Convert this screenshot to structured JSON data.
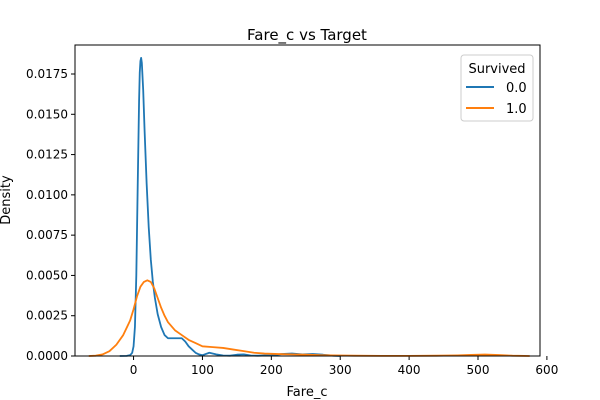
{
  "chart_data": {
    "type": "line",
    "title": "Fare_c vs Target",
    "xlabel": "Fare_c",
    "ylabel": "Density",
    "xlim": [
      -85,
      590
    ],
    "ylim": [
      0,
      0.0193
    ],
    "xticks": [
      0,
      100,
      200,
      300,
      400,
      500,
      600
    ],
    "yticks": [
      0.0,
      0.0025,
      0.005,
      0.0075,
      0.01,
      0.0125,
      0.015,
      0.0175
    ],
    "ytick_labels": [
      "0.0000",
      "0.0025",
      "0.0050",
      "0.0075",
      "0.0100",
      "0.0125",
      "0.0150",
      "0.0175"
    ],
    "grid": false,
    "legend": {
      "title": "Survived",
      "placement": "top-right"
    },
    "series": [
      {
        "name": "0.0",
        "color": "#1f77b4",
        "points": [
          [
            -20,
            0
          ],
          [
            -10,
            1e-05
          ],
          [
            -5,
            5e-05
          ],
          [
            -2,
            0.0002
          ],
          [
            0,
            0.0006
          ],
          [
            2,
            0.0018
          ],
          [
            4,
            0.005
          ],
          [
            6,
            0.0105
          ],
          [
            8,
            0.0158
          ],
          [
            9,
            0.0176
          ],
          [
            10,
            0.0183
          ],
          [
            11,
            0.0185
          ],
          [
            12,
            0.0182
          ],
          [
            14,
            0.0165
          ],
          [
            16,
            0.014
          ],
          [
            19,
            0.0107
          ],
          [
            22,
            0.008
          ],
          [
            25,
            0.006
          ],
          [
            28,
            0.0046
          ],
          [
            31,
            0.0036
          ],
          [
            35,
            0.0026
          ],
          [
            40,
            0.0018
          ],
          [
            45,
            0.0013
          ],
          [
            50,
            0.0011
          ],
          [
            55,
            0.0011
          ],
          [
            60,
            0.0011
          ],
          [
            65,
            0.0011
          ],
          [
            70,
            0.0011
          ],
          [
            75,
            0.0009
          ],
          [
            80,
            0.0006
          ],
          [
            85,
            0.0004
          ],
          [
            90,
            0.0002
          ],
          [
            95,
            0.0001
          ],
          [
            100,
            5e-05
          ],
          [
            110,
            0.0002
          ],
          [
            120,
            0.0001
          ],
          [
            130,
            3e-05
          ],
          [
            140,
            2e-05
          ],
          [
            150,
            8e-05
          ],
          [
            160,
            0.0001
          ],
          [
            170,
            3e-05
          ],
          [
            180,
            2e-05
          ],
          [
            200,
            4e-05
          ],
          [
            215,
            0.00012
          ],
          [
            230,
            0.00015
          ],
          [
            245,
            0.0001
          ],
          [
            260,
            0.00012
          ],
          [
            275,
            8e-05
          ],
          [
            290,
            2e-05
          ],
          [
            300,
            0
          ]
        ]
      },
      {
        "name": "1.0",
        "color": "#ff7f0e",
        "points": [
          [
            -65,
            0
          ],
          [
            -55,
            2e-05
          ],
          [
            -45,
            0.0001
          ],
          [
            -35,
            0.0003
          ],
          [
            -25,
            0.0007
          ],
          [
            -15,
            0.0013
          ],
          [
            -5,
            0.0022
          ],
          [
            0,
            0.0029
          ],
          [
            5,
            0.0037
          ],
          [
            10,
            0.0043
          ],
          [
            15,
            0.0046
          ],
          [
            20,
            0.0047
          ],
          [
            25,
            0.0046
          ],
          [
            30,
            0.0042
          ],
          [
            35,
            0.0036
          ],
          [
            40,
            0.003
          ],
          [
            45,
            0.0025
          ],
          [
            50,
            0.0021
          ],
          [
            60,
            0.0016
          ],
          [
            70,
            0.0013
          ],
          [
            80,
            0.001
          ],
          [
            90,
            0.0008
          ],
          [
            100,
            0.0006
          ],
          [
            115,
            0.00055
          ],
          [
            130,
            0.0005
          ],
          [
            145,
            0.0004
          ],
          [
            160,
            0.0003
          ],
          [
            175,
            0.0002
          ],
          [
            190,
            0.00015
          ],
          [
            210,
            0.00012
          ],
          [
            230,
            0.0001
          ],
          [
            250,
            8e-05
          ],
          [
            270,
            5e-05
          ],
          [
            290,
            4e-05
          ],
          [
            320,
            2e-05
          ],
          [
            360,
            1e-05
          ],
          [
            400,
            1e-05
          ],
          [
            440,
            2e-05
          ],
          [
            470,
            4e-05
          ],
          [
            490,
            7e-05
          ],
          [
            510,
            9e-05
          ],
          [
            530,
            6e-05
          ],
          [
            550,
            2e-05
          ],
          [
            575,
            0
          ]
        ]
      }
    ]
  }
}
